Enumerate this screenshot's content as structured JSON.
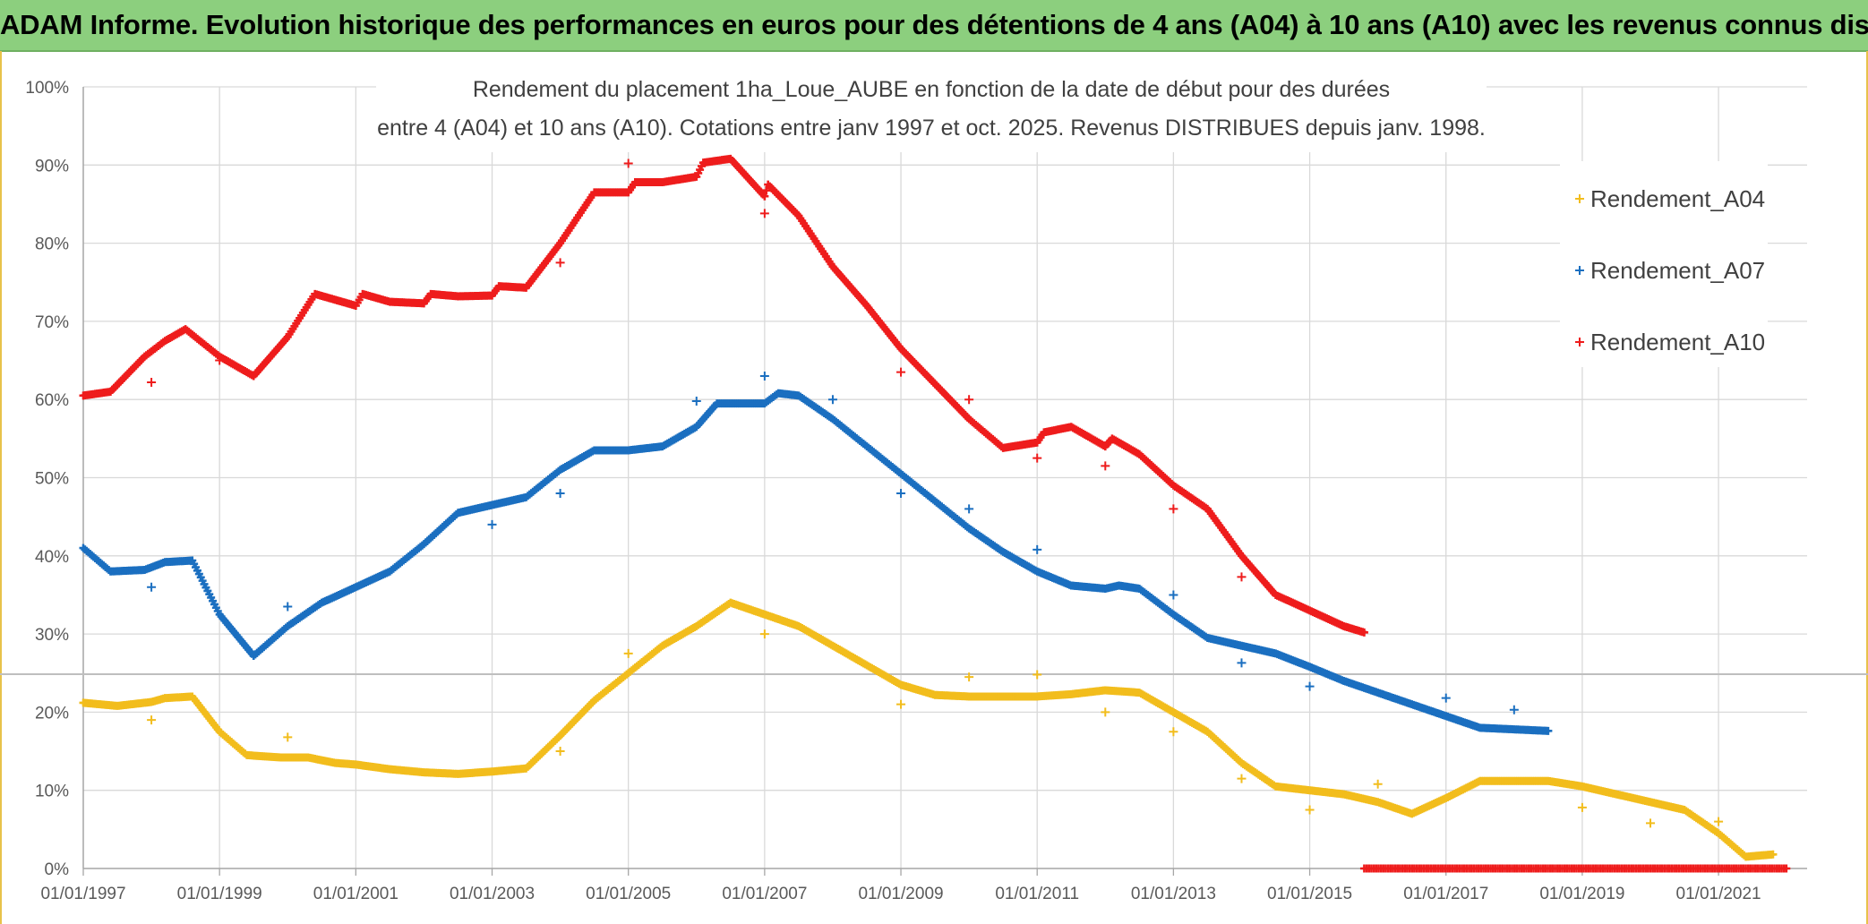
{
  "banner": {
    "title": "ADAM Informe. Evolution historique des performances en euros pour des détentions de 4 ans (A04) à 10 ans (A10) avec les revenus connus distribués",
    "color": "#8ccf7e"
  },
  "chart_data": {
    "type": "scatter",
    "title_line1": "Rendement du placement 1ha_Loue_AUBE en fonction de la date de début pour des durées",
    "title_line2": "entre 4 (A04) et 10 ans (A10). Cotations entre janv 1997 et oct. 2025. Revenus DISTRIBUES depuis janv. 1998.",
    "x_ticks": [
      "01/01/1997",
      "01/01/1999",
      "01/01/2001",
      "01/01/2003",
      "01/01/2005",
      "01/01/2007",
      "01/01/2009",
      "01/01/2011",
      "01/01/2013",
      "01/01/2015",
      "01/01/2017",
      "01/01/2019",
      "01/01/2021"
    ],
    "y_ticks": [
      "0%",
      "10%",
      "20%",
      "30%",
      "40%",
      "50%",
      "60%",
      "70%",
      "80%",
      "90%",
      "100%"
    ],
    "xlim": [
      1997.0,
      2022.3
    ],
    "ylim": [
      0,
      100
    ],
    "grid": true,
    "legend_position": "top-right",
    "series": [
      {
        "name": "Rendement_A04",
        "color": "#f2bd1d",
        "points": [
          [
            1997.0,
            21.2
          ],
          [
            1997.5,
            20.8
          ],
          [
            1998.0,
            21.3
          ],
          [
            1998.2,
            21.8
          ],
          [
            1998.6,
            22.0
          ],
          [
            1999.0,
            17.5
          ],
          [
            1999.4,
            14.5
          ],
          [
            1999.9,
            14.2
          ],
          [
            2000.3,
            14.2
          ],
          [
            2000.7,
            13.5
          ],
          [
            2001.0,
            13.3
          ],
          [
            2001.5,
            12.7
          ],
          [
            2002.0,
            12.3
          ],
          [
            2002.5,
            12.1
          ],
          [
            2003.0,
            12.4
          ],
          [
            2003.5,
            12.8
          ],
          [
            2004.0,
            17.0
          ],
          [
            2004.5,
            21.5
          ],
          [
            2005.0,
            25.0
          ],
          [
            2005.5,
            28.5
          ],
          [
            2006.0,
            31.0
          ],
          [
            2006.5,
            34.0
          ],
          [
            2007.0,
            32.5
          ],
          [
            2007.5,
            31.0
          ],
          [
            2008.0,
            28.5
          ],
          [
            2008.5,
            26.0
          ],
          [
            2009.0,
            23.5
          ],
          [
            2009.5,
            22.2
          ],
          [
            2010.0,
            22.0
          ],
          [
            2010.5,
            22.0
          ],
          [
            2011.0,
            22.0
          ],
          [
            2011.5,
            22.3
          ],
          [
            2012.0,
            22.8
          ],
          [
            2012.5,
            22.5
          ],
          [
            2013.0,
            20.0
          ],
          [
            2013.5,
            17.5
          ],
          [
            2014.0,
            13.5
          ],
          [
            2014.5,
            10.5
          ],
          [
            2015.0,
            10.0
          ],
          [
            2015.5,
            9.5
          ],
          [
            2016.0,
            8.5
          ],
          [
            2016.5,
            7.0
          ],
          [
            2017.0,
            9.0
          ],
          [
            2017.5,
            11.2
          ],
          [
            2018.0,
            11.2
          ],
          [
            2018.5,
            11.2
          ],
          [
            2019.0,
            10.5
          ],
          [
            2019.5,
            9.5
          ],
          [
            2020.0,
            8.5
          ],
          [
            2020.5,
            7.5
          ],
          [
            2021.0,
            4.5
          ],
          [
            2021.4,
            1.5
          ],
          [
            2021.8,
            1.8
          ]
        ],
        "outliers": [
          [
            1998.0,
            19.0
          ],
          [
            2000.0,
            16.8
          ],
          [
            2004.0,
            15.0
          ],
          [
            2005.0,
            27.5
          ],
          [
            2007.0,
            30.0
          ],
          [
            2009.0,
            21.0
          ],
          [
            2010.0,
            24.5
          ],
          [
            2011.0,
            24.8
          ],
          [
            2012.0,
            20.0
          ],
          [
            2013.0,
            17.5
          ],
          [
            2014.0,
            11.5
          ],
          [
            2015.0,
            7.5
          ],
          [
            2016.0,
            10.8
          ],
          [
            2019.0,
            7.8
          ],
          [
            2020.0,
            5.8
          ],
          [
            2021.0,
            6.0
          ]
        ]
      },
      {
        "name": "Rendement_A07",
        "color": "#1b6fc0",
        "points": [
          [
            1997.0,
            41.0
          ],
          [
            1997.4,
            38.0
          ],
          [
            1997.9,
            38.2
          ],
          [
            1998.2,
            39.2
          ],
          [
            1998.6,
            39.4
          ],
          [
            1999.0,
            32.5
          ],
          [
            1999.5,
            27.2
          ],
          [
            2000.0,
            31.0
          ],
          [
            2000.5,
            34.0
          ],
          [
            2001.0,
            36.0
          ],
          [
            2001.5,
            38.0
          ],
          [
            2002.0,
            41.5
          ],
          [
            2002.5,
            45.5
          ],
          [
            2003.0,
            46.5
          ],
          [
            2003.5,
            47.5
          ],
          [
            2004.0,
            51.0
          ],
          [
            2004.5,
            53.5
          ],
          [
            2005.0,
            53.5
          ],
          [
            2005.5,
            54.0
          ],
          [
            2006.0,
            56.5
          ],
          [
            2006.3,
            59.5
          ],
          [
            2007.0,
            59.5
          ],
          [
            2007.2,
            60.8
          ],
          [
            2007.5,
            60.5
          ],
          [
            2008.0,
            57.5
          ],
          [
            2008.5,
            54.0
          ],
          [
            2009.0,
            50.5
          ],
          [
            2009.5,
            47.0
          ],
          [
            2010.0,
            43.5
          ],
          [
            2010.5,
            40.5
          ],
          [
            2011.0,
            38.0
          ],
          [
            2011.5,
            36.2
          ],
          [
            2012.0,
            35.8
          ],
          [
            2012.2,
            36.2
          ],
          [
            2012.5,
            35.8
          ],
          [
            2013.0,
            32.5
          ],
          [
            2013.5,
            29.5
          ],
          [
            2014.0,
            28.5
          ],
          [
            2014.5,
            27.5
          ],
          [
            2015.0,
            25.8
          ],
          [
            2015.5,
            24.0
          ],
          [
            2016.0,
            22.5
          ],
          [
            2016.5,
            21.0
          ],
          [
            2017.0,
            19.5
          ],
          [
            2017.5,
            18.0
          ],
          [
            2018.0,
            17.8
          ],
          [
            2018.5,
            17.6
          ]
        ],
        "outliers": [
          [
            1998.0,
            36.0
          ],
          [
            2000.0,
            33.5
          ],
          [
            2003.0,
            44.0
          ],
          [
            2004.0,
            48.0
          ],
          [
            2006.0,
            59.8
          ],
          [
            2007.0,
            63.0
          ],
          [
            2008.0,
            60.0
          ],
          [
            2009.0,
            48.0
          ],
          [
            2010.0,
            46.0
          ],
          [
            2011.0,
            40.8
          ],
          [
            2013.0,
            35.0
          ],
          [
            2014.0,
            26.3
          ],
          [
            2015.0,
            23.3
          ],
          [
            2017.0,
            21.8
          ],
          [
            2018.0,
            20.3
          ]
        ]
      },
      {
        "name": "Rendement_A10",
        "color": "#ee1c1c",
        "points": [
          [
            1997.0,
            60.5
          ],
          [
            1997.4,
            61.0
          ],
          [
            1997.9,
            65.5
          ],
          [
            1998.2,
            67.5
          ],
          [
            1998.5,
            69.0
          ],
          [
            1999.0,
            65.5
          ],
          [
            1999.5,
            63.0
          ],
          [
            2000.0,
            68.0
          ],
          [
            2000.4,
            73.5
          ],
          [
            2001.0,
            72.0
          ],
          [
            2001.1,
            73.5
          ],
          [
            2001.5,
            72.5
          ],
          [
            2002.0,
            72.3
          ],
          [
            2002.1,
            73.5
          ],
          [
            2002.5,
            73.2
          ],
          [
            2003.0,
            73.3
          ],
          [
            2003.1,
            74.5
          ],
          [
            2003.5,
            74.3
          ],
          [
            2004.0,
            80.0
          ],
          [
            2004.5,
            86.5
          ],
          [
            2005.0,
            86.5
          ],
          [
            2005.1,
            87.8
          ],
          [
            2005.5,
            87.8
          ],
          [
            2006.0,
            88.5
          ],
          [
            2006.1,
            90.3
          ],
          [
            2006.5,
            90.8
          ],
          [
            2007.0,
            86.0
          ],
          [
            2007.05,
            87.5
          ],
          [
            2007.5,
            83.5
          ],
          [
            2008.0,
            77.0
          ],
          [
            2008.5,
            72.0
          ],
          [
            2009.0,
            66.5
          ],
          [
            2009.5,
            62.0
          ],
          [
            2010.0,
            57.5
          ],
          [
            2010.5,
            53.8
          ],
          [
            2011.0,
            54.5
          ],
          [
            2011.1,
            55.8
          ],
          [
            2011.5,
            56.5
          ],
          [
            2012.0,
            54.0
          ],
          [
            2012.1,
            55.0
          ],
          [
            2012.5,
            53.0
          ],
          [
            2013.0,
            49.0
          ],
          [
            2013.5,
            46.0
          ],
          [
            2014.0,
            40.0
          ],
          [
            2014.5,
            35.0
          ],
          [
            2015.0,
            33.0
          ],
          [
            2015.5,
            31.0
          ],
          [
            2015.8,
            30.2
          ]
        ],
        "outliers": [
          [
            1998.0,
            62.2
          ],
          [
            1999.0,
            65.0
          ],
          [
            2004.0,
            77.5
          ],
          [
            2005.0,
            90.2
          ],
          [
            2007.0,
            83.8
          ],
          [
            2009.0,
            63.5
          ],
          [
            2010.0,
            60.0
          ],
          [
            2011.0,
            52.5
          ],
          [
            2012.0,
            51.5
          ],
          [
            2013.0,
            46.0
          ],
          [
            2014.0,
            37.3
          ]
        ],
        "zero_segment": [
          2015.8,
          2022.0
        ]
      }
    ]
  }
}
